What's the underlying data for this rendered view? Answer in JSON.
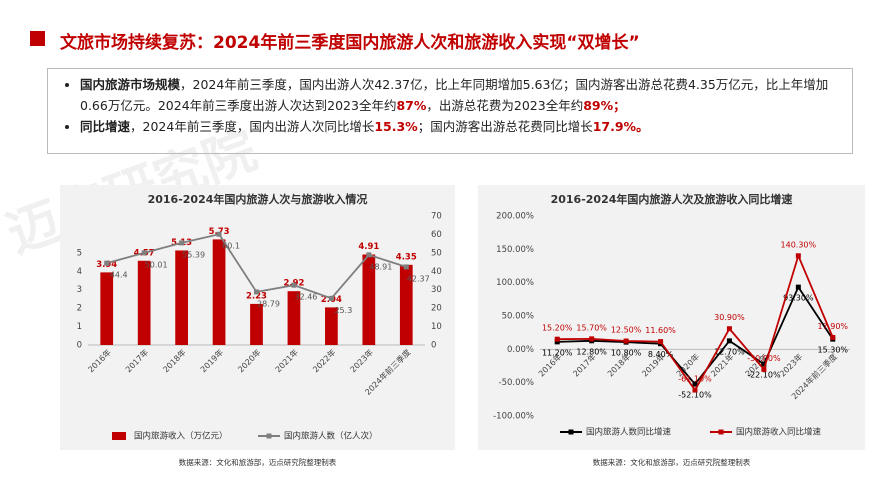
{
  "header": {
    "title": "文旅市场持续复苏：2024年前三季度国内旅游人次和旅游收入实现“双增长”"
  },
  "bullets": [
    [
      "国内旅游市场规模",
      "，2024年前三季度，国内出游人次42.37亿，比上年同期增加5.63亿；国内游客出游总花费4.35万亿元，比上年增加0.66万亿元。2024年前三季度出游人次达到2023全年约",
      "87%",
      "，出游总花费为2023全年约",
      "89%；"
    ],
    [
      "同比增速",
      "，2024年前三季度，国内出游人次同比增长",
      "15.3%",
      "；国内游客出游总花费同比增长",
      "17.9%。"
    ]
  ],
  "watermark": [
    "迈点研究院",
    "MEADIN ACADEMY"
  ],
  "chart_data": [
    {
      "type": "bar",
      "title": "2016-2024年国内旅游人次与旅游收入情况",
      "categories": [
        "2016年",
        "2017年",
        "2018年",
        "2019年",
        "2020年",
        "2021年",
        "2022年",
        "2023年",
        "2024年前三季度"
      ],
      "series": [
        {
          "name": "国内旅游收入（万亿元）",
          "color": "#c00000",
          "values": [
            3.94,
            4.57,
            5.13,
            5.73,
            2.23,
            2.92,
            2.04,
            4.91,
            4.35
          ]
        },
        {
          "name": "国内旅游人数（亿人次）",
          "type": "line",
          "axis": "y2",
          "color": "#7f7f7f",
          "values": [
            44.4,
            50.01,
            55.39,
            60.1,
            28.79,
            32.46,
            25.3,
            48.91,
            42.37
          ]
        }
      ],
      "ylim": [
        0,
        7
      ],
      "yticks": [
        0,
        1,
        2,
        3,
        4,
        5
      ],
      "y2lim": [
        0,
        70
      ],
      "y2ticks": [
        0,
        10,
        20,
        30,
        40,
        50,
        60,
        70
      ],
      "grid": false,
      "legend": "bottom",
      "source": "数据来源：文化和旅游部，迈点研究院整理制表"
    },
    {
      "type": "line",
      "title": "2016-2024年国内旅游人次及旅游收入同比增速",
      "categories": [
        "2016年",
        "2017年",
        "2018年",
        "2019年",
        "2020年",
        "2021年",
        "2022年",
        "2023年",
        "2024年前三季度"
      ],
      "series": [
        {
          "name": "国内旅游人数同比增速",
          "color": "#000000",
          "values": [
            11.2,
            12.8,
            10.8,
            8.4,
            -52.1,
            12.7,
            -22.1,
            93.3,
            15.3
          ],
          "value_labels": [
            "11.20%",
            "12.80%",
            "10.80%",
            "8.40%",
            "-52.10%",
            "12.70%",
            "-22.10%",
            "93.30%",
            "15.30%"
          ]
        },
        {
          "name": "国内旅游收入同比增速",
          "color": "#c00000",
          "values": [
            15.2,
            15.7,
            12.5,
            11.6,
            -61.1,
            30.9,
            -30.0,
            140.3,
            17.9
          ],
          "value_labels": [
            "15.20%",
            "15.70%",
            "12.50%",
            "11.60%",
            "-61.10%",
            "30.90%",
            "-30.00%",
            "140.30%",
            "17.90%"
          ]
        }
      ],
      "ylim": [
        -100,
        200
      ],
      "yticks": [
        {
          "value": -100,
          "label": "-100.00%"
        },
        {
          "value": -50,
          "label": "-50.00%"
        },
        {
          "value": 0,
          "label": "0.00%"
        },
        {
          "value": 50,
          "label": "50.00%"
        },
        {
          "value": 100,
          "label": "100.00%"
        },
        {
          "value": 150,
          "label": "150.00%"
        },
        {
          "value": 200,
          "label": "200.00%"
        }
      ],
      "grid": false,
      "legend": "bottom",
      "source": "数据来源：文化和旅游部，迈点研究院整理制表"
    }
  ]
}
